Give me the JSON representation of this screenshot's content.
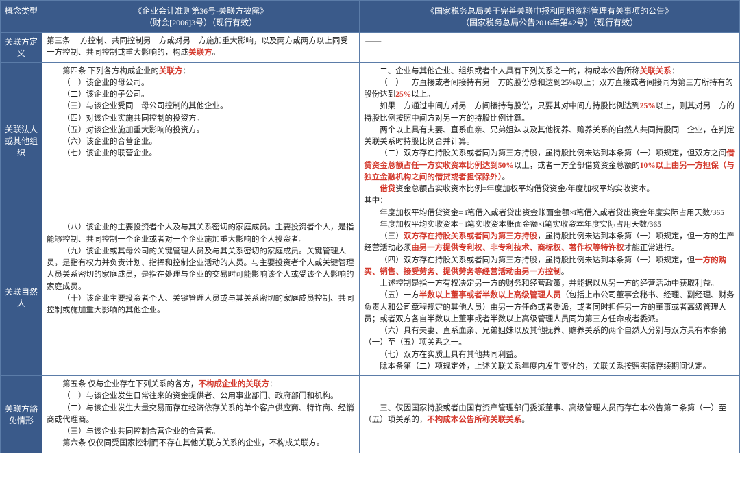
{
  "headers": {
    "concept": "概念类型",
    "col1_line1": "《企业会计准则第36号-关联方披露》",
    "col1_line2": "（财会[2006]3号）（现行有效）",
    "col2_line1": "《国家税务总局关于完善关联申报和同期资料管理有关事项的公告》",
    "col2_line2": "（国家税务总局公告2016年第42号）（现行有效）"
  },
  "rows": {
    "r1_concept": "关联方定义",
    "r1_left_p1": "第三条  一方控制、共同控制另一方或对另一方施加重大影响，以及两方或两方以上同受一方控制、共同控制或重大影响的，构成",
    "r1_left_red": "关联方",
    "r1_left_p2": "。",
    "r1_right": "——",
    "r2_concept": "关联法人或其他组织",
    "r2_left_l1a": "第四条  下列各方构成企业的",
    "r2_left_l1red": "关联方",
    "r2_left_l1b": "：",
    "r2_left_l2": "（一）该企业的母公司。",
    "r2_left_l3": "（二）该企业的子公司。",
    "r2_left_l4": "（三）与该企业受同一母公司控制的其他企业。",
    "r2_left_l5": "（四）对该企业实施共同控制的投资方。",
    "r2_left_l6": "（五）对该企业施加重大影响的投资方。",
    "r2_left_l7": "（六）该企业的合营企业。",
    "r2_left_l8": "（七）该企业的联营企业。",
    "r3_concept": "关联自然人",
    "r3_left_p1": "（八）该企业的主要投资者个人及与其关系密切的家庭成员。主要投资者个人，是指能够控制、共同控制一个企业或者对一个企业施加重大影响的个人投资者。",
    "r3_left_p2": "（九）该企业或其母公司的关键管理人员及与其关系密切的家庭成员。关键管理人员，是指有权力并负责计划、指挥和控制企业活动的人员。与主要投资者个人或关键管理人员关系密切的家庭成员，是指在处理与企业的交易时可能影响该个人或受该个人影响的家庭成员。",
    "r3_left_p3": "（十）该企业主要投资者个人、关键管理人员或与其关系密切的家庭成员控制、共同控制或施加重大影响的其他企业。",
    "r23_right_p1a": "二、企业与其他企业、组织或者个人具有下列关系之一的，构成本公告所称",
    "r23_right_p1red": "关联关系",
    "r23_right_p1b": "：",
    "r23_right_p2a": "（一）一方直接或者间接持有另一方的股份总和达到25%以上；双方直接或者间接同为第三方所持有的股份达到",
    "r23_right_p2red": "25%",
    "r23_right_p2b": "以上。",
    "r23_right_p3a": "如果一方通过中间方对另一方间接持有股份，只要其对中间方持股比例达到",
    "r23_right_p3red": "25%",
    "r23_right_p3b": "以上，则其对另一方的持股比例按照中间方对另一方的持股比例计算。",
    "r23_right_p4": "两个以上具有夫妻、直系血亲、兄弟姐妹以及其他抚养、赡养关系的自然人共同持股同一企业，在判定关联关系时持股比例合并计算。",
    "r23_right_p5a": "（二）双方存在持股关系或者同为第三方持股，虽持股比例未达到本条第（一）项规定，但双方之间",
    "r23_right_p5red1": "借贷资金总额占任一方实收资本比例达到50%",
    "r23_right_p5b": "以上，或者一方全部借贷资金总额的",
    "r23_right_p5red2": "10%以上由另一方担保（与独立金融机构之间的借贷或者担保除外）",
    "r23_right_p5c": "。",
    "r23_right_p6a": "",
    "r23_right_p6red": "借贷",
    "r23_right_p6b": "资金总额占实收资本比例=年度加权平均借贷资金/年度加权平均实收资本。",
    "r23_right_p7": "其中：",
    "r23_right_p8": "年度加权平均借贷资金= i笔借入或者贷出资金账面金额×i笔借入或者贷出资金年度实际占用天数/365",
    "r23_right_p9": "年度加权平均实收资本= i笔实收资本账面金额×i笔实收资本年度实际占用天数/365",
    "r23_right_p10a": "（三）",
    "r23_right_p10red1": "双方存在持股关系或者同为第三方持股",
    "r23_right_p10b": "，虽持股比例未达到本条第（一）项规定，但一方的生产经营活动必须",
    "r23_right_p10red2": "由另一方提供专利权、非专利技术、商标权、著作权等特许权",
    "r23_right_p10c": "才能正常进行。",
    "r23_right_p11a": "（四）双方存在持股关系或者同为第三方持股，虽持股比例未达到本条第（一）项规定，但",
    "r23_right_p11red": "一方的购买、销售、接受劳务、提供劳务等经营活动由另一方控制",
    "r23_right_p11b": "。",
    "r23_right_p12": "上述控制是指一方有权决定另一方的财务和经营政策，并能据以从另一方的经营活动中获取利益。",
    "r23_right_p13a": "（五）一方",
    "r23_right_p13red": "半数以上董事或者半数以上高级管理人员",
    "r23_right_p13b": "（包括上市公司董事会秘书、经理、副经理、财务负责人和公司章程规定的其他人员）由另一方任命或者委派，或者同时担任另一方的董事或者高级管理人员；或者双方各自半数以上董事或者半数以上高级管理人员同为第三方任命或者委派。",
    "r23_right_p14": "（六）具有夫妻、直系血亲、兄弟姐妹以及其他抚养、赡养关系的两个自然人分别与双方具有本条第（一）至（五）项关系之一。",
    "r23_right_p15": "（七）双方在实质上具有其他共同利益。",
    "r23_right_p16": "除本条第（二）项规定外，上述关联关系年度内发生变化的，关联关系按照实际存续期间认定。",
    "r4_concept": "关联方豁免情形",
    "r4_left_l1a": "第五条  仅与企业存在下列关系的各方，",
    "r4_left_l1red": "不构成企业的关联方",
    "r4_left_l1b": "：",
    "r4_left_l2": "（一）与该企业发生日常往来的资金提供者、公用事业部门、政府部门和机构。",
    "r4_left_l3": "（二）与该企业发生大量交易而存在经济依存关系的单个客户供应商、特许商、经销商或代理商。",
    "r4_left_l4": "（三）与该企业共同控制合营企业的合营者。",
    "r4_left_l5": "第六条  仅仅同受国家控制而不存在其他关联方关系的企业，不构成关联方。",
    "r4_right_a": "三、仅因国家持股或者由国有资产管理部门委派董事、高级管理人员而存在本公告第二条第（一）至（五）项关系的，",
    "r4_right_red": "不构成本公告所称关联关系",
    "r4_right_b": "。"
  }
}
